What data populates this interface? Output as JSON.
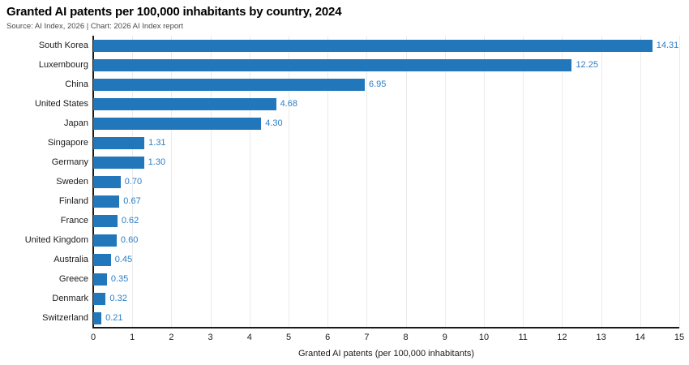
{
  "header": {
    "title": "Granted AI patents per 100,000 inhabitants by country, 2024",
    "source": "Source: AI Index, 2026 | Chart: 2026 AI Index report"
  },
  "chart_data": {
    "type": "bar",
    "orientation": "horizontal",
    "title": "Granted AI patents per 100,000 inhabitants by country, 2024",
    "categories": [
      "South Korea",
      "Luxembourg",
      "China",
      "United States",
      "Japan",
      "Singapore",
      "Germany",
      "Sweden",
      "Finland",
      "France",
      "United Kingdom",
      "Australia",
      "Greece",
      "Denmark",
      "Switzerland"
    ],
    "values": [
      14.31,
      12.25,
      6.95,
      4.68,
      4.3,
      1.31,
      1.3,
      0.7,
      0.67,
      0.62,
      0.6,
      0.45,
      0.35,
      0.32,
      0.21
    ],
    "value_labels": [
      "14.31",
      "12.25",
      "6.95",
      "4.68",
      "4.30",
      "1.31",
      "1.30",
      "0.70",
      "0.67",
      "0.62",
      "0.60",
      "0.45",
      "0.35",
      "0.32",
      "0.21"
    ],
    "xlabel": "Granted AI patents (per 100,000 inhabitants)",
    "ylabel": "",
    "xlim": [
      0,
      15
    ],
    "xticks": [
      0,
      1,
      2,
      3,
      4,
      5,
      6,
      7,
      8,
      9,
      10,
      11,
      12,
      13,
      14,
      15
    ],
    "grid": "vertical",
    "legend": "none",
    "colors": {
      "bar": "#2277BB",
      "value_label": "#2C7EC4",
      "axis_line": "#1a1a1a",
      "gridline": "#ebebeb",
      "tick_text": "#1a1a1a",
      "title_text": "#000000",
      "source_text": "#4a4a4a"
    }
  }
}
